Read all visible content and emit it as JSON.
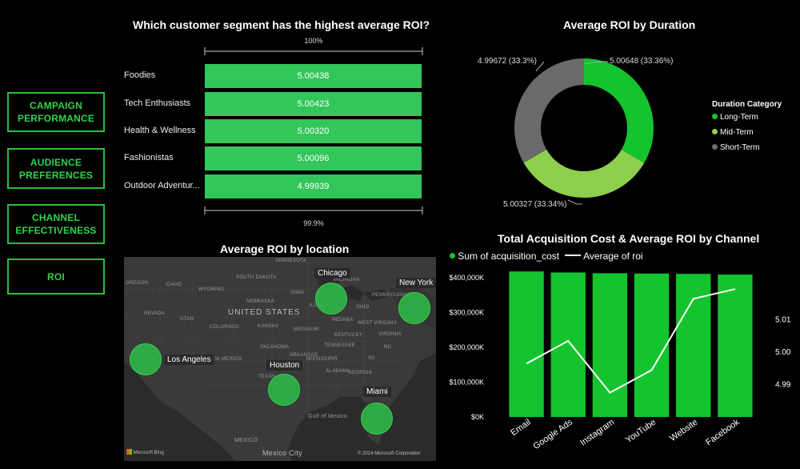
{
  "nav": {
    "items": [
      {
        "label": "CAMPAIGN\nPERFORMANCE"
      },
      {
        "label": "AUDIENCE\nPREFERENCES"
      },
      {
        "label": "CHANNEL\nEFFECTIVENESS"
      },
      {
        "label": "ROI"
      }
    ]
  },
  "segment_chart": {
    "title": "Which customer segment has the highest average ROI?",
    "scale_top": "100%",
    "scale_bottom": "99.9%",
    "rows": [
      {
        "label": "Foodies",
        "value": "5.00438"
      },
      {
        "label": "Tech Enthusiasts",
        "value": "5.00423"
      },
      {
        "label": "Health & Wellness",
        "value": "5.00320"
      },
      {
        "label": "Fashionistas",
        "value": "5.00096"
      },
      {
        "label": "Outdoor Adventur...",
        "value": "4.99939"
      }
    ]
  },
  "duration_chart": {
    "title": "Average ROI by Duration",
    "legend_title": "Duration Category",
    "slices": [
      {
        "name": "Long-Term",
        "label": "5.00648 (33.36%)",
        "color": "#14c42e"
      },
      {
        "name": "Mid-Term",
        "label": "5.00327 (33.34%)",
        "color": "#8dcf4c"
      },
      {
        "name": "Short-Term",
        "label": "4.99672 (33.3%)",
        "color": "#6a6a6a"
      }
    ]
  },
  "location_map": {
    "title": "Average ROI by location",
    "country_label": "UNITED STATES",
    "gulf_label": "Gulf of Mexico",
    "mexico_label": "MEXICO",
    "mexico_city_label": "Mexico City",
    "bing_label": "Microsoft Bing",
    "copyright": "© 2024 Microsoft Corporation",
    "cities": [
      {
        "name": "Chicago"
      },
      {
        "name": "New York"
      },
      {
        "name": "Los Angeles"
      },
      {
        "name": "Houston"
      },
      {
        "name": "Miami"
      }
    ],
    "states": [
      "MINNESOTA",
      "OREGON",
      "IDAHO",
      "WYOMING",
      "SOUTH DAKOTA",
      "IOWA",
      "NEBRASKA",
      "NEVADA",
      "UTAH",
      "COLORADO",
      "KANSAS",
      "MISSOURI",
      "ILLINOIS",
      "INDIANA",
      "OHIO",
      "WEST VIRGINIA",
      "KENTUCKY",
      "TENNESSEE",
      "OKLAHOMA",
      "ARKANSAS",
      "NEW MEXICO",
      "TEXAS",
      "MISSISSIPPI",
      "ALABAMA",
      "GEORGIA",
      "SC",
      "NC",
      "VIRGINIA",
      "PENNSYLVANIA",
      "MICHIGAN"
    ]
  },
  "chart_data": {
    "type": "bar",
    "title": "Total Acquisition Cost & Average ROI by Channel",
    "categories": [
      "Email",
      "Google Ads",
      "Instagram",
      "YouTube",
      "Website",
      "Facebook"
    ],
    "series": [
      {
        "name": "Sum of acquisition_cost",
        "type": "bar",
        "axis": "left",
        "color": "#14c42e",
        "values": [
          418000000,
          415000000,
          413000000,
          412000000,
          411000000,
          409000000
        ]
      },
      {
        "name": "Average of roi",
        "type": "line",
        "axis": "right",
        "color": "#ffffff",
        "values": [
          4.9965,
          5.0035,
          4.9875,
          4.9945,
          5.0165,
          5.0195
        ]
      }
    ],
    "y_left_ticks": [
      "$0K",
      "$100,000K",
      "$200,000K",
      "$300,000K",
      "$400,000K"
    ],
    "y_right_ticks": [
      "4.99",
      "5.00",
      "5.01"
    ],
    "ylim_left": [
      0,
      400000000
    ],
    "ylim_right": [
      4.98,
      5.023
    ]
  }
}
